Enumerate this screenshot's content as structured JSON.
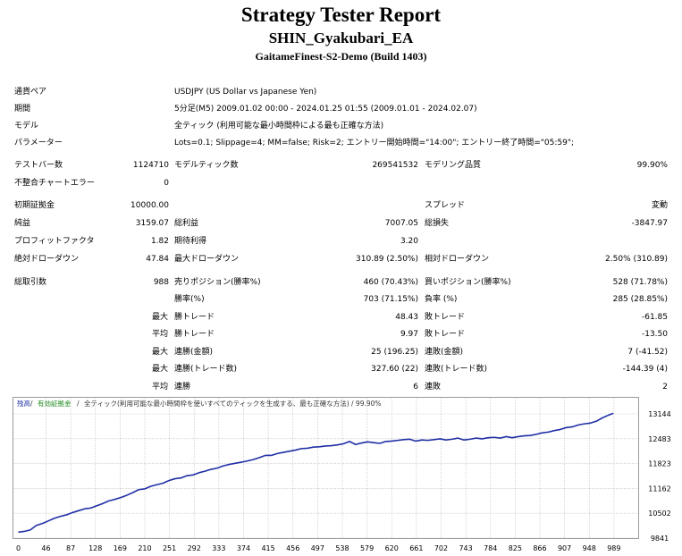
{
  "report": {
    "title": "Strategy Tester Report",
    "ea_name": "SHIN_Gyakubari_EA",
    "server": "GaitameFinest-S2-Demo (Build 1403)"
  },
  "info": {
    "symbol_label": "通貨ペア",
    "symbol_value": "USDJPY (US Dollar vs Japanese Yen)",
    "period_label": "期間",
    "period_value": "5分足(M5) 2009.01.02 00:00 - 2024.01.25 01:55 (2009.01.01 - 2024.02.07)",
    "model_label": "モデル",
    "model_value": "全ティック (利用可能な最小時間枠による最も正確な方法)",
    "params_label": "パラメーター",
    "params_value": "Lots=0.1; Slippage=4; MM=false; Risk=2; エントリー開始時間=\"14:00\"; エントリー終了時間=\"05:59\";"
  },
  "stats": {
    "bars_label": "テストバー数",
    "bars_value": "1124710",
    "ticks_label": "モデルティック数",
    "ticks_value": "269541532",
    "quality_label": "モデリング品質",
    "quality_value": "99.90%",
    "errors_label": "不整合チャートエラー",
    "errors_value": "0",
    "deposit_label": "初期証拠金",
    "deposit_value": "10000.00",
    "spread_label": "スプレッド",
    "spread_value": "変動",
    "netprofit_label": "純益",
    "netprofit_value": "3159.07",
    "grossprofit_label": "総利益",
    "grossprofit_value": "7007.05",
    "grossloss_label": "総損失",
    "grossloss_value": "-3847.97",
    "pf_label": "プロフィットファクタ",
    "pf_value": "1.82",
    "payoff_label": "期待利得",
    "payoff_value": "3.20",
    "absdd_label": "絶対ドローダウン",
    "absdd_value": "47.84",
    "maxdd_label": "最大ドローダウン",
    "maxdd_value": "310.89 (2.50%)",
    "reldd_label": "相対ドローダウン",
    "reldd_value": "2.50% (310.89)",
    "trades_label": "総取引数",
    "trades_value": "988",
    "short_label": "売りポジション(勝率%)",
    "short_value": "460 (70.43%)",
    "long_label": "買いポジション(勝率%)",
    "long_value": "528 (71.78%)",
    "win_label": "勝率(%)",
    "win_value": "703 (71.15%)",
    "loss_label": "負率 (%)",
    "loss_value": "285 (28.85%)",
    "max_label": "最大",
    "avg_label": "平均",
    "largest_win_label": "勝トレード",
    "largest_win_value": "48.43",
    "largest_loss_label": "敗トレード",
    "largest_loss_value": "-61.85",
    "avg_win_label": "勝トレード",
    "avg_win_value": "9.97",
    "avg_loss_label": "敗トレード",
    "avg_loss_value": "-13.50",
    "max_consec_wins_label": "連勝(金額)",
    "max_consec_wins_value": "25 (196.25)",
    "max_consec_losses_label": "連敗(金額)",
    "max_consec_losses_value": "7 (-41.52)",
    "max_consec_profit_label": "連勝(トレード数)",
    "max_consec_profit_value": "327.60 (22)",
    "max_consec_loss_label": "連敗(トレード数)",
    "max_consec_loss_value": "-144.39 (4)",
    "avg_consec_wins_label": "連勝",
    "avg_consec_wins_value": "6",
    "avg_consec_losses_label": "連敗",
    "avg_consec_losses_value": "2"
  },
  "graph": {
    "legend_balance": "残高",
    "legend_equity": "有効証拠金",
    "legend_rest": "全ティック(利用可能な最小時間枠を使いすべてのティックを生成する、最も正確な方法) / 99.90%",
    "colors": {
      "balance": "#1f2fa5",
      "equity": "#1b8a1b",
      "grid": "#9a9a9a",
      "border": "#9a9a9a"
    }
  },
  "chart_data": {
    "type": "line",
    "title": "",
    "x_ticks": [
      0,
      46,
      87,
      128,
      169,
      210,
      251,
      292,
      333,
      374,
      415,
      456,
      497,
      538,
      579,
      620,
      661,
      702,
      743,
      784,
      825,
      866,
      907,
      948,
      989
    ],
    "y_ticks": [
      13144,
      12483,
      11823,
      11162,
      10502,
      9841
    ],
    "ylim": [
      9841,
      13144
    ],
    "xlim": [
      0,
      1030
    ],
    "series": [
      {
        "name": "残高",
        "x": [
          0,
          10,
          20,
          30,
          40,
          50,
          60,
          70,
          80,
          90,
          100,
          110,
          120,
          130,
          140,
          150,
          160,
          170,
          180,
          190,
          200,
          210,
          220,
          230,
          240,
          250,
          260,
          270,
          280,
          290,
          300,
          310,
          320,
          330,
          340,
          350,
          360,
          370,
          380,
          390,
          400,
          410,
          420,
          430,
          440,
          450,
          460,
          470,
          480,
          490,
          500,
          510,
          520,
          530,
          540,
          550,
          560,
          570,
          580,
          590,
          600,
          610,
          620,
          630,
          640,
          650,
          660,
          670,
          680,
          690,
          700,
          710,
          720,
          730,
          740,
          750,
          760,
          770,
          780,
          790,
          800,
          810,
          820,
          830,
          840,
          850,
          860,
          870,
          880,
          890,
          900,
          910,
          920,
          930,
          940,
          950,
          960,
          970,
          980,
          988
        ],
        "y": [
          10000,
          10020,
          10060,
          10180,
          10230,
          10300,
          10370,
          10420,
          10460,
          10520,
          10570,
          10620,
          10640,
          10700,
          10760,
          10830,
          10870,
          10920,
          10980,
          11050,
          11130,
          11150,
          11220,
          11260,
          11300,
          11370,
          11420,
          11440,
          11500,
          11520,
          11580,
          11620,
          11670,
          11700,
          11760,
          11800,
          11830,
          11860,
          11890,
          11930,
          11980,
          12040,
          12040,
          12090,
          12120,
          12150,
          12180,
          12220,
          12230,
          12260,
          12270,
          12290,
          12300,
          12320,
          12350,
          12410,
          12330,
          12370,
          12400,
          12380,
          12360,
          12410,
          12420,
          12440,
          12460,
          12470,
          12420,
          12450,
          12440,
          12460,
          12480,
          12450,
          12470,
          12500,
          12450,
          12470,
          12500,
          12480,
          12510,
          12520,
          12500,
          12540,
          12510,
          12540,
          12560,
          12570,
          12600,
          12640,
          12660,
          12700,
          12730,
          12780,
          12800,
          12850,
          12880,
          12900,
          12950,
          13040,
          13110,
          13159
        ]
      }
    ]
  }
}
